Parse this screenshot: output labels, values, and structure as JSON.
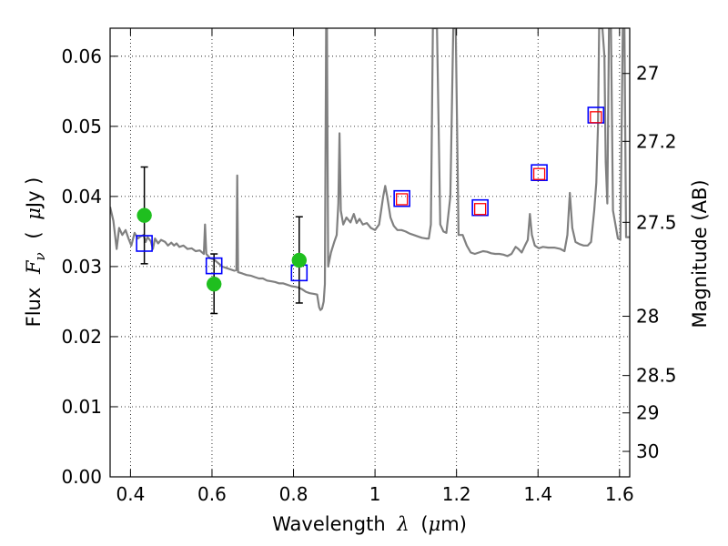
{
  "chart_data": {
    "type": "scatter",
    "title": "",
    "xlabel": {
      "prefix": "Wavelength",
      "symbol": "λ",
      "unit_open": "(",
      "unit_mu": "μ",
      "unit_rest": "m)"
    },
    "ylabel": {
      "prefix": "Flux",
      "symbol": "F",
      "subscript": "ν",
      "unit_open": "(",
      "unit_mu": "μ",
      "unit_rest": "Jy )"
    },
    "y2label": "Magnitude (AB)",
    "xlim": [
      0.35,
      1.625
    ],
    "ylim": [
      0.0,
      0.064
    ],
    "grid": true,
    "x_ticks": [
      {
        "value": 0.4,
        "label": "0.4"
      },
      {
        "value": 0.6,
        "label": "0.6"
      },
      {
        "value": 0.8,
        "label": "0.8"
      },
      {
        "value": 1.0,
        "label": "1"
      },
      {
        "value": 1.2,
        "label": "1.2"
      },
      {
        "value": 1.4,
        "label": "1.4"
      },
      {
        "value": 1.6,
        "label": "1.6"
      }
    ],
    "y_ticks": [
      {
        "value": 0.0,
        "label": "0.00"
      },
      {
        "value": 0.01,
        "label": "0.01"
      },
      {
        "value": 0.02,
        "label": "0.02"
      },
      {
        "value": 0.03,
        "label": "0.03"
      },
      {
        "value": 0.04,
        "label": "0.04"
      },
      {
        "value": 0.05,
        "label": "0.05"
      },
      {
        "value": 0.06,
        "label": "0.06"
      }
    ],
    "y2_ticks": [
      {
        "value": 27.0,
        "label": "27"
      },
      {
        "value": 27.2,
        "label": "27.2"
      },
      {
        "value": 27.5,
        "label": "27.5"
      },
      {
        "value": 28.0,
        "label": "28"
      },
      {
        "value": 28.5,
        "label": "28.5"
      },
      {
        "value": 29.0,
        "label": "29"
      },
      {
        "value": 30.0,
        "label": "30"
      }
    ],
    "series": [
      {
        "kind": "line",
        "color": "#808080",
        "points": [
          [
            0.35,
            0.0385
          ],
          [
            0.358,
            0.0365
          ],
          [
            0.366,
            0.0325
          ],
          [
            0.372,
            0.0355
          ],
          [
            0.38,
            0.0345
          ],
          [
            0.388,
            0.0352
          ],
          [
            0.395,
            0.034
          ],
          [
            0.402,
            0.033
          ],
          [
            0.41,
            0.0348
          ],
          [
            0.418,
            0.034
          ],
          [
            0.425,
            0.0343
          ],
          [
            0.432,
            0.0345
          ],
          [
            0.437,
            0.0335
          ],
          [
            0.442,
            0.0342
          ],
          [
            0.45,
            0.0336
          ],
          [
            0.455,
            0.0325
          ],
          [
            0.46,
            0.034
          ],
          [
            0.468,
            0.0333
          ],
          [
            0.475,
            0.0338
          ],
          [
            0.485,
            0.0335
          ],
          [
            0.492,
            0.033
          ],
          [
            0.5,
            0.0334
          ],
          [
            0.507,
            0.033
          ],
          [
            0.513,
            0.0333
          ],
          [
            0.52,
            0.0328
          ],
          [
            0.53,
            0.033
          ],
          [
            0.54,
            0.0325
          ],
          [
            0.55,
            0.0326
          ],
          [
            0.56,
            0.0322
          ],
          [
            0.57,
            0.0323
          ],
          [
            0.58,
            0.0318
          ],
          [
            0.583,
            0.036
          ],
          [
            0.586,
            0.0318
          ],
          [
            0.595,
            0.0312
          ],
          [
            0.605,
            0.031
          ],
          [
            0.615,
            0.0305
          ],
          [
            0.625,
            0.03
          ],
          [
            0.635,
            0.0298
          ],
          [
            0.645,
            0.0296
          ],
          [
            0.655,
            0.0294
          ],
          [
            0.66,
            0.0295
          ],
          [
            0.662,
            0.043
          ],
          [
            0.664,
            0.0292
          ],
          [
            0.675,
            0.029
          ],
          [
            0.685,
            0.0288
          ],
          [
            0.695,
            0.0287
          ],
          [
            0.705,
            0.0285
          ],
          [
            0.715,
            0.0283
          ],
          [
            0.725,
            0.0283
          ],
          [
            0.735,
            0.028
          ],
          [
            0.745,
            0.0279
          ],
          [
            0.755,
            0.0278
          ],
          [
            0.765,
            0.0276
          ],
          [
            0.775,
            0.0276
          ],
          [
            0.785,
            0.0274
          ],
          [
            0.795,
            0.0272
          ],
          [
            0.805,
            0.0271
          ],
          [
            0.812,
            0.027
          ],
          [
            0.82,
            0.0268
          ],
          [
            0.83,
            0.0264
          ],
          [
            0.84,
            0.0262
          ],
          [
            0.85,
            0.0261
          ],
          [
            0.858,
            0.026
          ],
          [
            0.863,
            0.0242
          ],
          [
            0.866,
            0.0238
          ],
          [
            0.87,
            0.024
          ],
          [
            0.874,
            0.025
          ],
          [
            0.877,
            0.0275
          ],
          [
            0.88,
            0.064
          ],
          [
            0.882,
            0.064
          ],
          [
            0.885,
            0.03
          ],
          [
            0.892,
            0.032
          ],
          [
            0.9,
            0.0335
          ],
          [
            0.906,
            0.0345
          ],
          [
            0.91,
            0.039
          ],
          [
            0.913,
            0.049
          ],
          [
            0.916,
            0.038
          ],
          [
            0.922,
            0.036
          ],
          [
            0.93,
            0.037
          ],
          [
            0.94,
            0.0363
          ],
          [
            0.948,
            0.0375
          ],
          [
            0.955,
            0.0362
          ],
          [
            0.962,
            0.0368
          ],
          [
            0.97,
            0.036
          ],
          [
            0.98,
            0.0362
          ],
          [
            0.99,
            0.0355
          ],
          [
            1.0,
            0.0352
          ],
          [
            1.01,
            0.036
          ],
          [
            1.02,
            0.04
          ],
          [
            1.025,
            0.0415
          ],
          [
            1.03,
            0.04
          ],
          [
            1.038,
            0.037
          ],
          [
            1.046,
            0.0358
          ],
          [
            1.055,
            0.0352
          ],
          [
            1.065,
            0.0352
          ],
          [
            1.075,
            0.035
          ],
          [
            1.085,
            0.0347
          ],
          [
            1.095,
            0.0345
          ],
          [
            1.105,
            0.0343
          ],
          [
            1.115,
            0.0341
          ],
          [
            1.125,
            0.034
          ],
          [
            1.132,
            0.034
          ],
          [
            1.137,
            0.036
          ],
          [
            1.142,
            0.064
          ],
          [
            1.152,
            0.064
          ],
          [
            1.16,
            0.036
          ],
          [
            1.168,
            0.035
          ],
          [
            1.175,
            0.0348
          ],
          [
            1.185,
            0.04
          ],
          [
            1.192,
            0.064
          ],
          [
            1.198,
            0.064
          ],
          [
            1.205,
            0.0345
          ],
          [
            1.215,
            0.0345
          ],
          [
            1.225,
            0.033
          ],
          [
            1.235,
            0.032
          ],
          [
            1.245,
            0.0318
          ],
          [
            1.255,
            0.032
          ],
          [
            1.265,
            0.0322
          ],
          [
            1.275,
            0.0321
          ],
          [
            1.285,
            0.0319
          ],
          [
            1.295,
            0.0318
          ],
          [
            1.305,
            0.0318
          ],
          [
            1.315,
            0.0317
          ],
          [
            1.325,
            0.0315
          ],
          [
            1.335,
            0.0318
          ],
          [
            1.345,
            0.0328
          ],
          [
            1.352,
            0.0325
          ],
          [
            1.36,
            0.032
          ],
          [
            1.368,
            0.033
          ],
          [
            1.375,
            0.0338
          ],
          [
            1.38,
            0.0375
          ],
          [
            1.385,
            0.0345
          ],
          [
            1.392,
            0.033
          ],
          [
            1.402,
            0.0326
          ],
          [
            1.412,
            0.0328
          ],
          [
            1.425,
            0.0327
          ],
          [
            1.44,
            0.0327
          ],
          [
            1.455,
            0.0325
          ],
          [
            1.465,
            0.0322
          ],
          [
            1.472,
            0.0345
          ],
          [
            1.478,
            0.0405
          ],
          [
            1.484,
            0.0355
          ],
          [
            1.492,
            0.0335
          ],
          [
            1.502,
            0.0332
          ],
          [
            1.512,
            0.033
          ],
          [
            1.522,
            0.033
          ],
          [
            1.53,
            0.0335
          ],
          [
            1.538,
            0.038
          ],
          [
            1.543,
            0.042
          ],
          [
            1.547,
            0.05
          ],
          [
            1.55,
            0.064
          ],
          [
            1.558,
            0.064
          ],
          [
            1.563,
            0.06
          ],
          [
            1.566,
            0.045
          ],
          [
            1.57,
            0.039
          ],
          [
            1.574,
            0.064
          ],
          [
            1.579,
            0.064
          ],
          [
            1.584,
            0.038
          ],
          [
            1.59,
            0.036
          ],
          [
            1.596,
            0.034
          ],
          [
            1.602,
            0.0338
          ],
          [
            1.608,
            0.064
          ],
          [
            1.612,
            0.064
          ],
          [
            1.616,
            0.0342
          ],
          [
            1.625,
            0.0342
          ]
        ]
      },
      {
        "kind": "open-squares",
        "color": "#0000ff",
        "points": [
          [
            0.434,
            0.0333
          ],
          [
            0.605,
            0.0301
          ],
          [
            0.814,
            0.0291
          ],
          [
            1.066,
            0.0397
          ],
          [
            1.258,
            0.0384
          ],
          [
            1.403,
            0.0434
          ],
          [
            1.542,
            0.0516
          ]
        ]
      },
      {
        "kind": "small-open-squares",
        "color": "#ff0000",
        "points": [
          [
            1.066,
            0.0396
          ],
          [
            1.258,
            0.0382
          ],
          [
            1.403,
            0.0432
          ],
          [
            1.542,
            0.0513
          ]
        ]
      },
      {
        "kind": "filled-circles",
        "color": "#1fbf1f",
        "points": [
          [
            0.434,
            0.0373
          ],
          [
            0.605,
            0.0275
          ],
          [
            0.814,
            0.0309
          ]
        ]
      },
      {
        "kind": "error-bars",
        "color": "#000000",
        "points": [
          {
            "x": 0.434,
            "low": 0.0304,
            "high": 0.0442
          },
          {
            "x": 0.605,
            "low": 0.0233,
            "high": 0.0318
          },
          {
            "x": 0.814,
            "low": 0.0248,
            "high": 0.0371
          }
        ]
      }
    ]
  }
}
